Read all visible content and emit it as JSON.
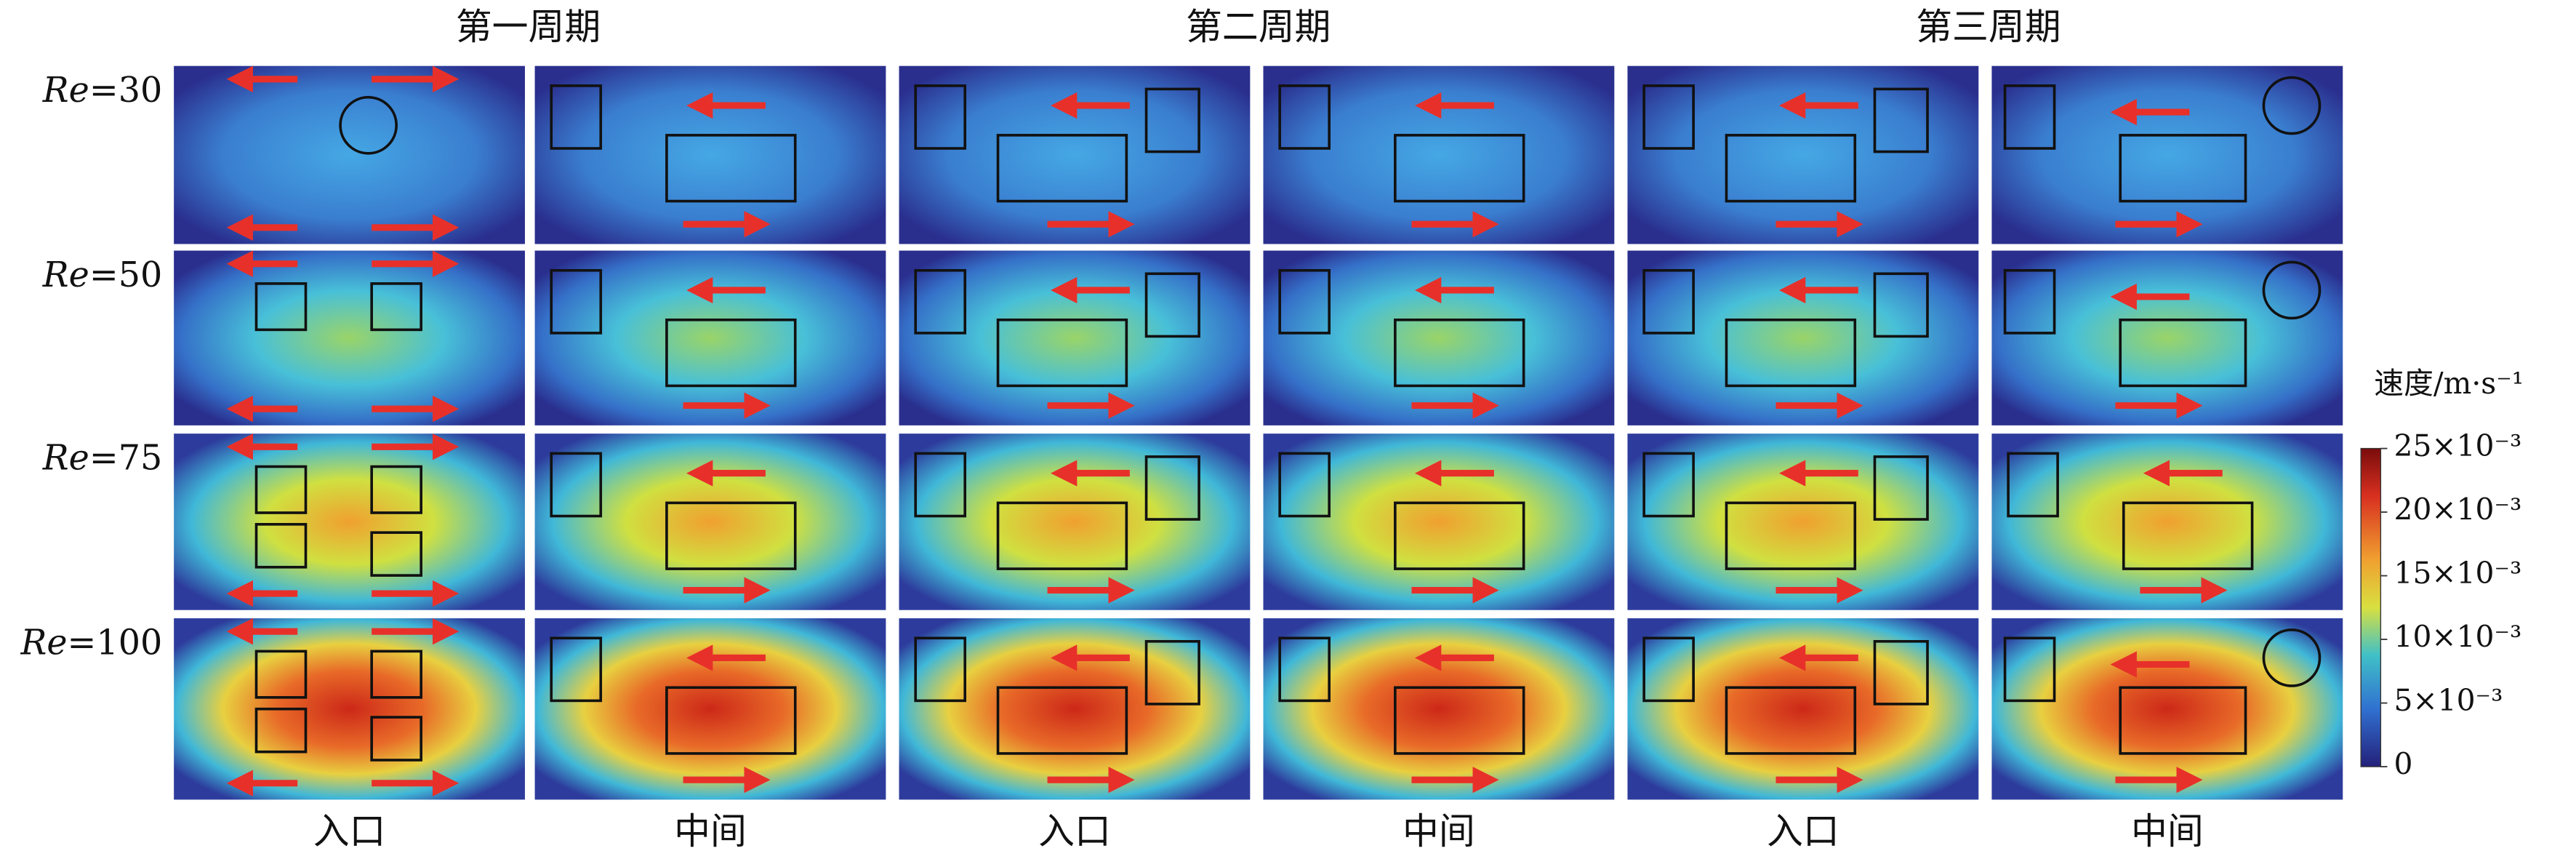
{
  "column_headers": [
    "第一周期",
    "第二周期",
    "第三周期"
  ],
  "row_labels": [
    {
      "var": "Re",
      "eq": "=30"
    },
    {
      "var": "Re",
      "eq": "=50"
    },
    {
      "var": "Re",
      "eq": "=75"
    },
    {
      "var": "Re",
      "eq": "=100"
    }
  ],
  "bottom_labels": [
    "入口",
    "中间",
    "入口",
    "中间",
    "入口",
    "中间"
  ],
  "colorbar": {
    "title": "速度/m·s⁻¹",
    "ticks": [
      "25×10⁻³",
      "20×10⁻³",
      "15×10⁻³",
      "10×10⁻³",
      "5×10⁻³",
      "0"
    ]
  }
}
